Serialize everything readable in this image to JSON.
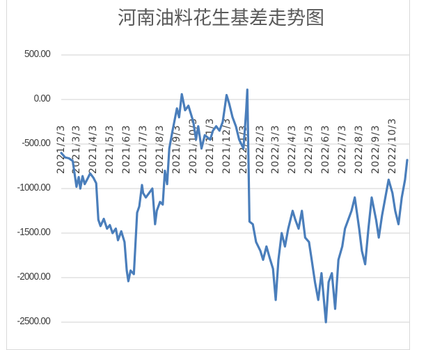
{
  "chart_data": {
    "type": "line",
    "title": "河南油料花生基差走势图",
    "xlabel": "",
    "ylabel": "",
    "ylim": [
      -2500,
      500
    ],
    "y_ticks": [
      "500.00",
      "0.00",
      "-500.00",
      "-1000.00",
      "-1500.00",
      "-2000.00",
      "-2500.00"
    ],
    "x_tick_labels": [
      "2021/2/3",
      "2021/3/3",
      "2021/4/3",
      "2021/5/3",
      "2021/6/3",
      "2021/7/3",
      "2021/8/3",
      "2021/9/3",
      "2021/10/3",
      "2021/11/3",
      "2021/12/3",
      "2022/1/3",
      "2022/2/3",
      "2022/3/3",
      "2022/4/3",
      "2022/5/3",
      "2022/6/3",
      "2022/7/3",
      "2022/8/3",
      "2022/9/3",
      "2022/10/3"
    ],
    "grid": true,
    "legend": "none",
    "series": [
      {
        "name": "河南油料花生基差",
        "color": "#4a7ebb",
        "points": [
          [
            "2021/2/3",
            -600
          ],
          [
            "2021/2/10",
            -650
          ],
          [
            "2021/2/17",
            -660
          ],
          [
            "2021/2/24",
            -690
          ],
          [
            "2021/3/3",
            -980
          ],
          [
            "2021/3/7",
            -870
          ],
          [
            "2021/3/10",
            -1000
          ],
          [
            "2021/3/14",
            -860
          ],
          [
            "2021/3/18",
            -950
          ],
          [
            "2021/3/24",
            -880
          ],
          [
            "2021/3/28",
            -830
          ],
          [
            "2021/4/3",
            -880
          ],
          [
            "2021/4/8",
            -940
          ],
          [
            "2021/4/12",
            -1350
          ],
          [
            "2021/4/16",
            -1420
          ],
          [
            "2021/4/22",
            -1340
          ],
          [
            "2021/4/28",
            -1450
          ],
          [
            "2021/5/3",
            -1410
          ],
          [
            "2021/5/8",
            -1500
          ],
          [
            "2021/5/14",
            -1450
          ],
          [
            "2021/5/18",
            -1580
          ],
          [
            "2021/5/24",
            -1480
          ],
          [
            "2021/5/30",
            -1600
          ],
          [
            "2021/6/3",
            -1920
          ],
          [
            "2021/6/6",
            -2040
          ],
          [
            "2021/6/10",
            -1920
          ],
          [
            "2021/6/16",
            -1960
          ],
          [
            "2021/6/22",
            -1270
          ],
          [
            "2021/6/26",
            -1200
          ],
          [
            "2021/7/1",
            -960
          ],
          [
            "2021/7/3",
            -1050
          ],
          [
            "2021/7/8",
            -1100
          ],
          [
            "2021/7/14",
            -1050
          ],
          [
            "2021/7/20",
            -1000
          ],
          [
            "2021/7/25",
            -1400
          ],
          [
            "2021/7/28",
            -1250
          ],
          [
            "2021/8/3",
            -1150
          ],
          [
            "2021/8/8",
            -1180
          ],
          [
            "2021/8/12",
            -800
          ],
          [
            "2021/8/16",
            -950
          ],
          [
            "2021/8/20",
            -550
          ],
          [
            "2021/8/26",
            -350
          ],
          [
            "2021/9/3",
            -100
          ],
          [
            "2021/9/7",
            -200
          ],
          [
            "2021/9/12",
            60
          ],
          [
            "2021/9/18",
            -120
          ],
          [
            "2021/9/24",
            -70
          ],
          [
            "2021/10/3",
            -250
          ],
          [
            "2021/10/8",
            -450
          ],
          [
            "2021/10/12",
            -300
          ],
          [
            "2021/10/18",
            -550
          ],
          [
            "2021/10/24",
            -400
          ],
          [
            "2021/11/3",
            -450
          ],
          [
            "2021/11/8",
            -350
          ],
          [
            "2021/11/14",
            -300
          ],
          [
            "2021/11/20",
            -350
          ],
          [
            "2021/11/26",
            -250
          ],
          [
            "2021/12/3",
            50
          ],
          [
            "2021/12/8",
            -50
          ],
          [
            "2021/12/14",
            -200
          ],
          [
            "2021/12/20",
            -300
          ],
          [
            "2021/12/26",
            -450
          ],
          [
            "2022/1/3",
            -550
          ],
          [
            "2022/1/8",
            -120
          ],
          [
            "2022/1/10",
            110
          ],
          [
            "2022/1/14",
            -1370
          ],
          [
            "2022/1/20",
            -1400
          ],
          [
            "2022/1/26",
            -1600
          ],
          [
            "2022/2/3",
            -1700
          ],
          [
            "2022/2/8",
            -1800
          ],
          [
            "2022/2/14",
            -1650
          ],
          [
            "2022/2/20",
            -1780
          ],
          [
            "2022/2/26",
            -1900
          ],
          [
            "2022/3/3",
            -2250
          ],
          [
            "2022/3/8",
            -1800
          ],
          [
            "2022/3/14",
            -1500
          ],
          [
            "2022/3/20",
            -1650
          ],
          [
            "2022/3/26",
            -1450
          ],
          [
            "2022/4/3",
            -1250
          ],
          [
            "2022/4/8",
            -1350
          ],
          [
            "2022/4/14",
            -1450
          ],
          [
            "2022/4/20",
            -1250
          ],
          [
            "2022/4/26",
            -1550
          ],
          [
            "2022/5/3",
            -1600
          ],
          [
            "2022/5/8",
            -1800
          ],
          [
            "2022/5/14",
            -2050
          ],
          [
            "2022/5/20",
            -2250
          ],
          [
            "2022/5/26",
            -1950
          ],
          [
            "2022/6/3",
            -2500
          ],
          [
            "2022/6/8",
            -2050
          ],
          [
            "2022/6/14",
            -1950
          ],
          [
            "2022/6/20",
            -2350
          ],
          [
            "2022/6/26",
            -1800
          ],
          [
            "2022/7/3",
            -1650
          ],
          [
            "2022/7/8",
            -1450
          ],
          [
            "2022/7/14",
            -1350
          ],
          [
            "2022/7/20",
            -1250
          ],
          [
            "2022/7/26",
            -1100
          ],
          [
            "2022/8/3",
            -1450
          ],
          [
            "2022/8/8",
            -1700
          ],
          [
            "2022/8/14",
            -1850
          ],
          [
            "2022/8/20",
            -1450
          ],
          [
            "2022/8/26",
            -1100
          ],
          [
            "2022/9/3",
            -1350
          ],
          [
            "2022/9/8",
            -1550
          ],
          [
            "2022/9/14",
            -1300
          ],
          [
            "2022/9/20",
            -1100
          ],
          [
            "2022/9/26",
            -900
          ],
          [
            "2022/10/3",
            -1050
          ],
          [
            "2022/10/8",
            -1250
          ],
          [
            "2022/10/14",
            -1400
          ],
          [
            "2022/10/20",
            -1100
          ],
          [
            "2022/10/26",
            -900
          ],
          [
            "2022/10/30",
            -680
          ]
        ]
      }
    ]
  }
}
